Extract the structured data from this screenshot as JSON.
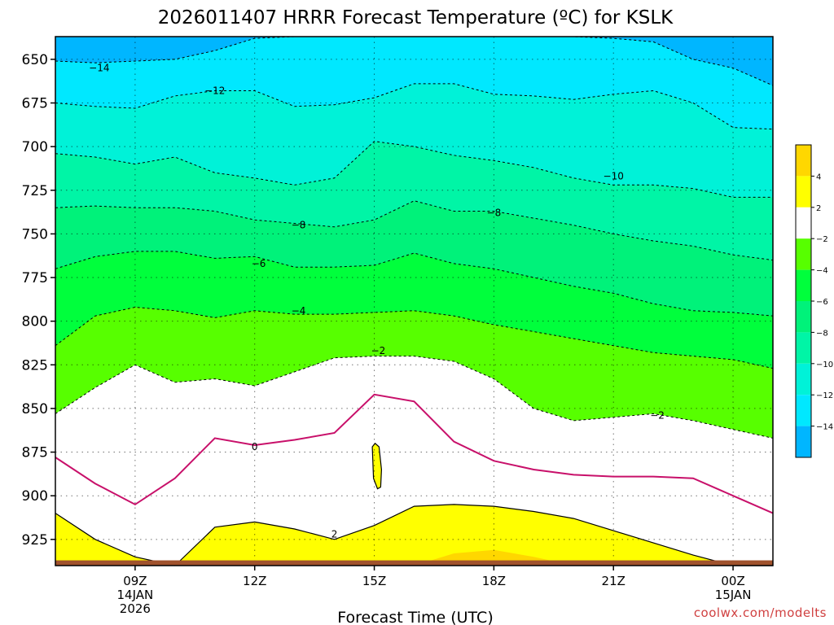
{
  "chart_data": {
    "type": "heatmap",
    "title": "2026011407 HRRR Forecast Temperature (ºC) for KSLK",
    "xlabel": "Forecast Time (UTC)",
    "ylabel": "",
    "credit": "coolwx.com/modelts",
    "x_ticks": [
      {
        "hour": 9,
        "label": [
          "09Z",
          "14JAN",
          "2026"
        ]
      },
      {
        "hour": 12,
        "label": [
          "12Z"
        ]
      },
      {
        "hour": 15,
        "label": [
          "15Z"
        ]
      },
      {
        "hour": 18,
        "label": [
          "18Z"
        ]
      },
      {
        "hour": 21,
        "label": [
          "21Z"
        ]
      },
      {
        "hour": 24,
        "label": [
          "00Z",
          "15JAN"
        ]
      }
    ],
    "y_ticks": [
      "650",
      "675",
      "700",
      "725",
      "750",
      "775",
      "800",
      "825",
      "850",
      "875",
      "900",
      "925"
    ],
    "xlim_hours": [
      7,
      25
    ],
    "ylim_hpa": [
      940,
      637
    ],
    "y_axis": "pressure (hPa)",
    "hours": [
      7,
      8,
      9,
      10,
      11,
      12,
      13,
      14,
      15,
      16,
      17,
      18,
      19,
      20,
      21,
      22,
      23,
      24,
      25
    ],
    "isotherms": [
      {
        "value": -14,
        "hpa": [
          651,
          652,
          651,
          650,
          645,
          638,
          637,
          637,
          637,
          637,
          637,
          637,
          637,
          637,
          638,
          640,
          650,
          655,
          665
        ]
      },
      {
        "value": -12,
        "hpa": [
          675,
          677,
          678,
          671,
          668,
          668,
          677,
          676,
          672,
          664,
          664,
          670,
          671,
          673,
          670,
          668,
          675,
          689,
          690
        ]
      },
      {
        "value": -10,
        "hpa": [
          704,
          706,
          710,
          706,
          715,
          718,
          722,
          718,
          697,
          700,
          705,
          708,
          712,
          718,
          722,
          722,
          724,
          729,
          729
        ]
      },
      {
        "value": -8,
        "hpa": [
          735,
          734,
          735,
          735,
          737,
          742,
          744,
          746,
          742,
          731,
          737,
          737,
          741,
          745,
          750,
          754,
          757,
          762,
          765
        ]
      },
      {
        "value": -6,
        "hpa": [
          770,
          763,
          760,
          760,
          764,
          763,
          769,
          769,
          768,
          761,
          767,
          770,
          775,
          780,
          784,
          790,
          794,
          795,
          797
        ]
      },
      {
        "value": -4,
        "hpa": [
          814,
          797,
          792,
          794,
          798,
          794,
          796,
          796,
          795,
          794,
          797,
          802,
          806,
          810,
          814,
          818,
          820,
          822,
          827
        ]
      },
      {
        "value": -2,
        "hpa": [
          853,
          838,
          825,
          835,
          833,
          837,
          829,
          821,
          820,
          820,
          823,
          833,
          850,
          857,
          855,
          853,
          857,
          862,
          867
        ]
      },
      {
        "value": 0,
        "hpa": [
          878,
          893,
          905,
          890,
          867,
          871,
          868,
          864,
          842,
          846,
          869,
          880,
          885,
          888,
          889,
          889,
          890,
          900,
          910
        ]
      },
      {
        "value": 2,
        "hpa": [
          910,
          925,
          935,
          940,
          918,
          915,
          919,
          925,
          917,
          906,
          905,
          906,
          909,
          913,
          920,
          927,
          934,
          940,
          940
        ]
      },
      {
        "value": 4,
        "hpa": [
          940,
          940,
          940,
          940,
          940,
          940,
          940,
          940,
          940,
          940,
          933,
          931,
          935,
          940,
          940,
          940,
          940,
          940,
          940
        ]
      }
    ],
    "warm_pockets": [
      {
        "value": 2,
        "hours": [
          14.95,
          15.02,
          15.12,
          15.18,
          15.16,
          15.08,
          14.98
        ],
        "hpa": [
          872,
          870,
          872,
          885,
          895,
          896,
          890
        ]
      }
    ],
    "contour_labels": [
      {
        "text": "−14",
        "hour": 8.1,
        "hpa": 655
      },
      {
        "text": "−12",
        "hour": 11.0,
        "hpa": 668
      },
      {
        "text": "−10",
        "hour": 21.0,
        "hpa": 717
      },
      {
        "text": "−8",
        "hour": 18.0,
        "hpa": 738
      },
      {
        "text": "−8",
        "hour": 13.1,
        "hpa": 745
      },
      {
        "text": "−6",
        "hour": 12.1,
        "hpa": 767
      },
      {
        "text": "−4",
        "hour": 13.1,
        "hpa": 794
      },
      {
        "text": "−2",
        "hour": 15.1,
        "hpa": 817
      },
      {
        "text": "−2",
        "hour": 22.1,
        "hpa": 854
      },
      {
        "text": "0",
        "hour": 12.0,
        "hpa": 872
      },
      {
        "text": "2",
        "hour": 14.0,
        "hpa": 922
      }
    ],
    "colorbar": [
      {
        "from": 4,
        "to": 6,
        "color": "#ffd700",
        "label": ""
      },
      {
        "from": 2,
        "to": 4,
        "color": "#ffff00",
        "label": "4"
      },
      {
        "from": -2,
        "to": 2,
        "color": "#ffffff",
        "label": "2"
      },
      {
        "from": -4,
        "to": -2,
        "color": "#57ff00",
        "label": "−2"
      },
      {
        "from": -6,
        "to": -4,
        "color": "#00ff3c",
        "label": "−4"
      },
      {
        "from": -8,
        "to": -6,
        "color": "#00f27a",
        "label": "−6"
      },
      {
        "from": -10,
        "to": -8,
        "color": "#00f5a6",
        "label": "−8"
      },
      {
        "from": -12,
        "to": -10,
        "color": "#00f2d8",
        "label": "−10"
      },
      {
        "from": -14,
        "to": -12,
        "color": "#00e8ff",
        "label": "−12"
      },
      {
        "from": -16,
        "to": -14,
        "color": "#00b6ff",
        "label": "−14"
      }
    ],
    "colors": {
      "above_minus14": "#00b6ff",
      "band_minus14_minus12": "#00e8ff",
      "band_minus12_minus10": "#00f2d8",
      "band_minus10_minus8": "#00f5a6",
      "band_minus8_minus6": "#00f27a",
      "band_minus6_minus4": "#00ff3c",
      "band_minus4_minus2": "#57ff00",
      "band_minus2_2": "#ffffff",
      "band_2_4": "#ffff00",
      "band_above_4": "#ffd700",
      "zero_line": "#c8106a",
      "ground": "#a0522d"
    },
    "grid": true
  }
}
